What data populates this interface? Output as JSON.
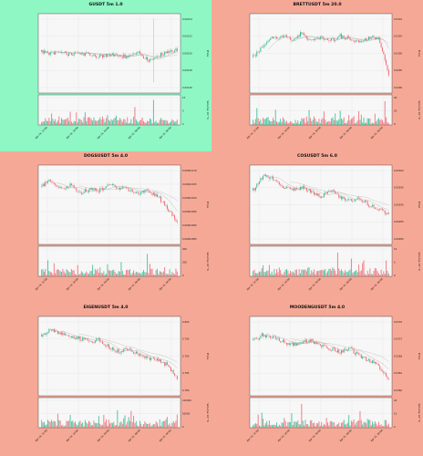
{
  "colors": {
    "page_background": "#f6a896",
    "selected_panel_background": "#8ff7c4",
    "plot_background": "#f7f7f7",
    "up_candle": "#2ebc91",
    "down_candle": "#f0646e",
    "ma_line": "#9a9a9a"
  },
  "chart_data": [
    {
      "type": "candlestick",
      "title": "GUSDT 5m 1.0",
      "selected": true,
      "ylabel_price": "Price",
      "ylabel_volume": "Volume 10^6",
      "price_ticks": [
        "0.00154",
        "0.00152",
        "0.00150",
        "0.00148",
        "0.00146"
      ],
      "volume_ticks": [
        "10",
        "5",
        "0"
      ],
      "x_ticks": [
        "Apr 14, 12:00",
        "Apr 14, 16:00",
        "Apr 14, 20:00",
        "Apr 15, 00:00",
        "Apr 15, 04:00"
      ],
      "seed": 11,
      "price_path": [
        0.52,
        0.5,
        0.51,
        0.49,
        0.5,
        0.48,
        0.46,
        0.49,
        0.47,
        0.45,
        0.5,
        0.4,
        0.46,
        0.52,
        0.54
      ],
      "spikes": [
        {
          "at": 0.83,
          "high": 0.98,
          "low": 0.1
        }
      ],
      "vol_spikes": [
        {
          "at": 0.83,
          "v": 0.95
        }
      ]
    },
    {
      "type": "candlestick",
      "title": "BRETTUSDT 5m 20.0",
      "selected": false,
      "ylabel_price": "Price",
      "ylabel_volume": "Volume 10^6",
      "price_ticks": [
        "0.0310",
        "0.0305",
        "0.0300",
        "0.0295",
        "0.0290"
      ],
      "volume_ticks": [
        "40",
        "20",
        "0"
      ],
      "x_ticks": [
        "Apr 14, 12:00",
        "Apr 14, 16:00",
        "Apr 14, 20:00",
        "Apr 15, 00:00",
        "Apr 15, 04:00"
      ],
      "seed": 23,
      "price_path": [
        0.45,
        0.6,
        0.72,
        0.74,
        0.7,
        0.78,
        0.66,
        0.72,
        0.68,
        0.74,
        0.7,
        0.66,
        0.72,
        0.7,
        0.2
      ],
      "spikes": [],
      "vol_spikes": [
        {
          "at": 0.97,
          "v": 0.9
        }
      ]
    },
    {
      "type": "candlestick",
      "title": "DOGSUSDT 5m 4.0",
      "selected": false,
      "ylabel_price": "Price",
      "ylabel_volume": "Volume 10^6",
      "price_ticks": [
        "0.00002110",
        "0.00002105",
        "0.00002100",
        "0.00002095",
        "0.00002090",
        "0.00002085"
      ],
      "volume_ticks": [
        "400",
        "200",
        "0"
      ],
      "x_ticks": [
        "Apr 14, 12:00",
        "Apr 14, 16:00",
        "Apr 14, 20:00",
        "Apr 15, 00:00",
        "Apr 15, 04:00"
      ],
      "seed": 37,
      "price_path": [
        0.75,
        0.85,
        0.72,
        0.78,
        0.66,
        0.72,
        0.7,
        0.8,
        0.74,
        0.7,
        0.66,
        0.7,
        0.62,
        0.45,
        0.25
      ],
      "spikes": [],
      "vol_spikes": [
        {
          "at": 0.78,
          "v": 0.85
        }
      ]
    },
    {
      "type": "candlestick",
      "title": "COSUSDT 5m 6.0",
      "selected": false,
      "ylabel_price": "Price",
      "ylabel_volume": "Volume 10^6",
      "price_ticks": [
        "0.00300",
        "0.00295",
        "0.00290",
        "0.00285",
        "0.00280"
      ],
      "volume_ticks": [
        "10",
        "5",
        "0"
      ],
      "x_ticks": [
        "Apr 14, 12:00",
        "Apr 14, 16:00",
        "Apr 14, 20:00",
        "Apr 15, 00:00",
        "Apr 15, 04:00"
      ],
      "seed": 41,
      "price_path": [
        0.7,
        0.9,
        0.86,
        0.76,
        0.7,
        0.74,
        0.68,
        0.62,
        0.7,
        0.6,
        0.56,
        0.6,
        0.5,
        0.44,
        0.36
      ],
      "spikes": [],
      "vol_spikes": [
        {
          "at": 0.62,
          "v": 0.9
        }
      ]
    },
    {
      "type": "candlestick",
      "title": "EIGENUSDT 5m 4.0",
      "selected": false,
      "ylabel_price": "Price",
      "ylabel_volume": "Volume 10^6",
      "price_ticks": [
        "0.800",
        "0.795",
        "0.790",
        "0.785",
        "0.780"
      ],
      "volume_ticks": [
        "100000",
        "50000",
        "0"
      ],
      "x_ticks": [
        "Apr 14, 12:00",
        "Apr 14, 16:00",
        "Apr 14, 20:00",
        "Apr 15, 00:00",
        "Apr 15, 04:00"
      ],
      "seed": 53,
      "price_path": [
        0.8,
        0.86,
        0.8,
        0.78,
        0.74,
        0.7,
        0.72,
        0.62,
        0.56,
        0.6,
        0.52,
        0.48,
        0.44,
        0.38,
        0.18
      ],
      "spikes": [],
      "vol_spikes": []
    },
    {
      "type": "candlestick",
      "title": "MOODENGUSDT 5m 4.0",
      "selected": false,
      "ylabel_price": "Price",
      "ylabel_volume": "Volume 10^6",
      "price_ticks": [
        "0.0376",
        "0.0372",
        "0.0368",
        "0.0364",
        "0.0360"
      ],
      "volume_ticks": [
        "20",
        "10",
        "0"
      ],
      "x_ticks": [
        "Apr 14, 12:00",
        "Apr 14, 16:00",
        "Apr 14, 20:00",
        "Apr 15, 00:00",
        "Apr 15, 04:00"
      ],
      "seed": 67,
      "price_path": [
        0.72,
        0.8,
        0.76,
        0.7,
        0.66,
        0.7,
        0.72,
        0.64,
        0.6,
        0.56,
        0.6,
        0.5,
        0.44,
        0.36,
        0.2
      ],
      "spikes": [],
      "vol_spikes": [
        {
          "at": 0.36,
          "v": 0.9
        }
      ]
    }
  ]
}
